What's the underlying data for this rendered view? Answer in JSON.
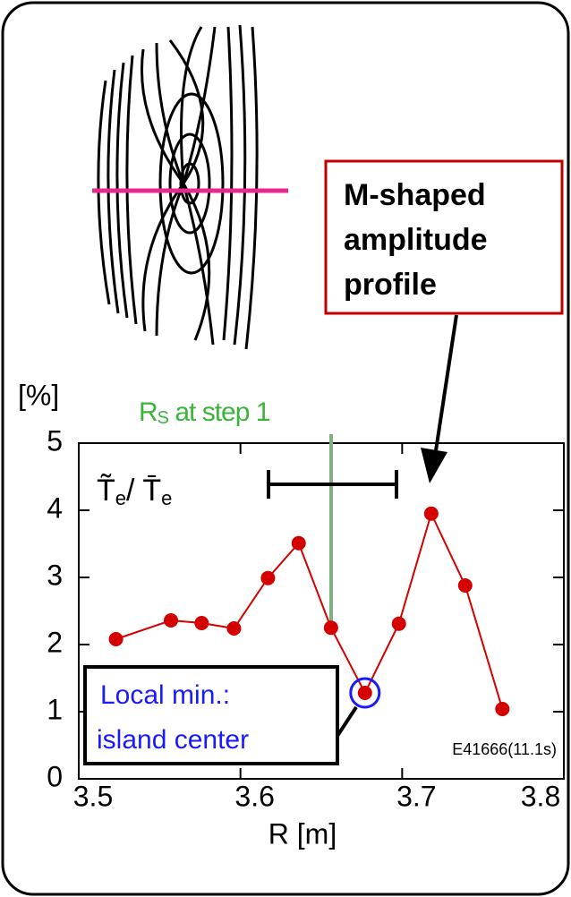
{
  "chart_data": {
    "type": "line",
    "y_unit": "[%]",
    "xlabel": "R [m]",
    "ylabel_parts": [
      "T̃",
      "e",
      "/ ",
      "T̄",
      "e"
    ],
    "rs_label": {
      "main": "R",
      "sub": "S",
      "rest": " at step 1"
    },
    "callout": [
      "M-shaped",
      "amplitude",
      "profile"
    ],
    "min_note": [
      "Local min.:",
      "island center"
    ],
    "shot_label": "E41666(11.1s)",
    "series": [
      {
        "color": "#d40000",
        "x": [
          3.523,
          3.557,
          3.576,
          3.596,
          3.617,
          3.636,
          3.656,
          3.677,
          3.698,
          3.718,
          3.739,
          3.762
        ],
        "values": [
          2.08,
          2.36,
          2.32,
          2.24,
          2.99,
          3.51,
          2.25,
          1.28,
          2.31,
          3.95,
          2.88,
          1.04
        ]
      }
    ],
    "xlim": [
      3.5,
      3.8
    ],
    "xticks": [
      3.5,
      3.6,
      3.7,
      3.8
    ],
    "ylim": [
      0,
      5
    ],
    "yticks": [
      0,
      1,
      2,
      3,
      4,
      5
    ]
  }
}
